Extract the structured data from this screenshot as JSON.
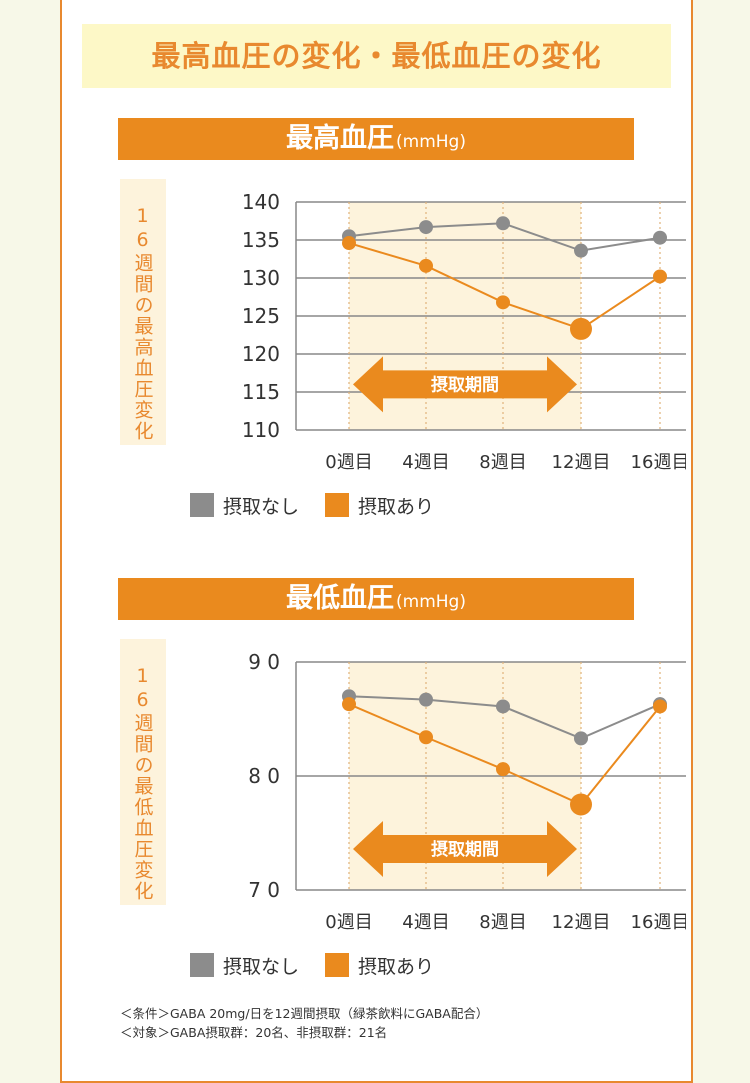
{
  "page_title": "最高血圧の変化・最低血圧の変化",
  "colors": {
    "no_intake": "#8c8c8c",
    "with_intake": "#ea8a1e",
    "band": "#fdf3dc",
    "title_bg": "#fdf8c7"
  },
  "legend": {
    "no_intake": "摂取なし",
    "with_intake": "摂取あり"
  },
  "notes": [
    "＜条件＞GABA 20mg/日を12週間摂取（緑茶飲料にGABA配合）",
    "＜対象＞GABA摂取群：20名、非摂取群：21名"
  ],
  "chart_data": [
    {
      "type": "line",
      "title": "最高血圧",
      "unit": "(mmHg)",
      "ylabel": "16週間の最高血圧変化",
      "categories": [
        "0週目",
        "4週目",
        "8週目",
        "12週目",
        "16週目"
      ],
      "ylim": [
        110,
        140
      ],
      "yticks": [
        "140",
        "135",
        "130",
        "125",
        "120",
        "115",
        "110"
      ],
      "grid": true,
      "legend_position": "bottom-left",
      "period_label": "摂取期間",
      "period_range": [
        0,
        3
      ],
      "series": [
        {
          "name": "摂取なし",
          "values": [
            135.5,
            136.7,
            137.2,
            133.6,
            135.3
          ]
        },
        {
          "name": "摂取あり",
          "values": [
            134.6,
            131.6,
            126.8,
            123.3,
            130.2
          ]
        }
      ]
    },
    {
      "type": "line",
      "title": "最低血圧",
      "unit": "(mmHg)",
      "ylabel": "16週間の最低血圧変化",
      "categories": [
        "0週目",
        "4週目",
        "8週目",
        "12週目",
        "16週目"
      ],
      "ylim": [
        70,
        90
      ],
      "yticks": [
        "9 0",
        "8 0",
        "7 0"
      ],
      "grid": true,
      "legend_position": "bottom-left",
      "period_label": "摂取期間",
      "period_range": [
        0,
        3
      ],
      "series": [
        {
          "name": "摂取なし",
          "values": [
            87.0,
            86.7,
            86.1,
            83.3,
            86.3
          ]
        },
        {
          "name": "摂取あり",
          "values": [
            86.3,
            83.4,
            80.6,
            77.5,
            86.1
          ]
        }
      ]
    }
  ]
}
